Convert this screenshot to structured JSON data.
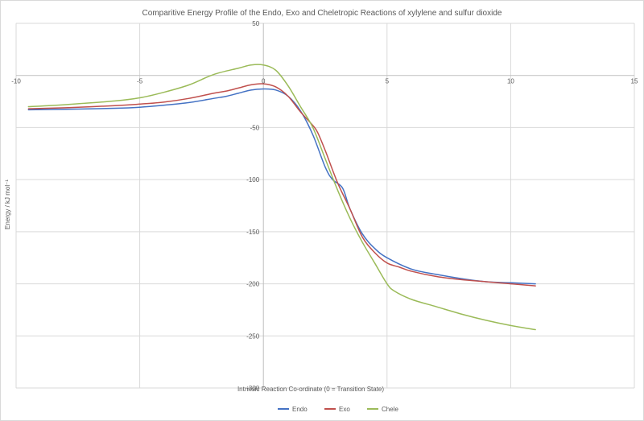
{
  "chart_data": {
    "type": "line",
    "title": "Comparitive Energy Profile of the Endo, Exo and Cheletropic Reactions of xylylene and sulfur dioxide",
    "xlabel": "Intrinsic Reaction Co-ordinate (0 = Transition State)",
    "ylabel": "Energy / kJ mol⁻¹",
    "xlim": [
      -10,
      15
    ],
    "ylim": [
      -300,
      50
    ],
    "xticks": [
      -10,
      -5,
      0,
      5,
      10,
      15
    ],
    "yticks": [
      50,
      0,
      -50,
      -100,
      -150,
      -200,
      -250,
      -300
    ],
    "grid": true,
    "legend": "bottom",
    "series": [
      {
        "name": "Endo",
        "color": "#4472c4",
        "points": [
          [
            -9.5,
            -33
          ],
          [
            -8,
            -32.5
          ],
          [
            -6,
            -31.5
          ],
          [
            -5,
            -30.5
          ],
          [
            -4,
            -28.5
          ],
          [
            -3,
            -26
          ],
          [
            -2,
            -22
          ],
          [
            -1.5,
            -20
          ],
          [
            -1,
            -17
          ],
          [
            -0.5,
            -14
          ],
          [
            0,
            -13
          ],
          [
            0.5,
            -14
          ],
          [
            1,
            -20
          ],
          [
            1.5,
            -34
          ],
          [
            2,
            -57
          ],
          [
            2.5,
            -88
          ],
          [
            2.8,
            -100
          ],
          [
            3.2,
            -108
          ],
          [
            3.5,
            -128
          ],
          [
            4,
            -152
          ],
          [
            4.5,
            -166
          ],
          [
            5,
            -175
          ],
          [
            6,
            -186
          ],
          [
            7,
            -191
          ],
          [
            8,
            -195
          ],
          [
            9,
            -198
          ],
          [
            10,
            -199
          ],
          [
            11,
            -200
          ]
        ]
      },
      {
        "name": "Exo",
        "color": "#c0504d",
        "points": [
          [
            -9.5,
            -32
          ],
          [
            -8,
            -31
          ],
          [
            -6,
            -29
          ],
          [
            -5,
            -27.5
          ],
          [
            -4,
            -25.5
          ],
          [
            -3,
            -22
          ],
          [
            -2,
            -17
          ],
          [
            -1.5,
            -15
          ],
          [
            -1,
            -12
          ],
          [
            -0.5,
            -9
          ],
          [
            0,
            -8
          ],
          [
            0.5,
            -11
          ],
          [
            1,
            -20
          ],
          [
            1.5,
            -35
          ],
          [
            2,
            -48
          ],
          [
            2.2,
            -55
          ],
          [
            2.5,
            -72
          ],
          [
            3,
            -103
          ],
          [
            3.5,
            -128
          ],
          [
            4,
            -155
          ],
          [
            4.5,
            -170
          ],
          [
            5,
            -180
          ],
          [
            5.5,
            -184
          ],
          [
            6,
            -188
          ],
          [
            7,
            -193
          ],
          [
            8,
            -196
          ],
          [
            9,
            -198
          ],
          [
            10,
            -200
          ],
          [
            11,
            -202
          ]
        ]
      },
      {
        "name": "Chele",
        "color": "#9bbb59",
        "points": [
          [
            -9.5,
            -30
          ],
          [
            -8,
            -28
          ],
          [
            -6,
            -24.5
          ],
          [
            -5,
            -21.5
          ],
          [
            -4,
            -16
          ],
          [
            -3,
            -9
          ],
          [
            -2,
            1
          ],
          [
            -1,
            7
          ],
          [
            -0.5,
            10
          ],
          [
            0,
            10
          ],
          [
            0.5,
            5
          ],
          [
            1,
            -10
          ],
          [
            1.5,
            -30
          ],
          [
            2,
            -50
          ],
          [
            2.5,
            -80
          ],
          [
            3,
            -110
          ],
          [
            3.5,
            -137
          ],
          [
            4,
            -160
          ],
          [
            4.5,
            -180
          ],
          [
            5,
            -200
          ],
          [
            5.3,
            -207
          ],
          [
            6,
            -215
          ],
          [
            7,
            -222
          ],
          [
            8,
            -229
          ],
          [
            9,
            -235
          ],
          [
            10,
            -240
          ],
          [
            11,
            -244
          ]
        ]
      }
    ]
  }
}
